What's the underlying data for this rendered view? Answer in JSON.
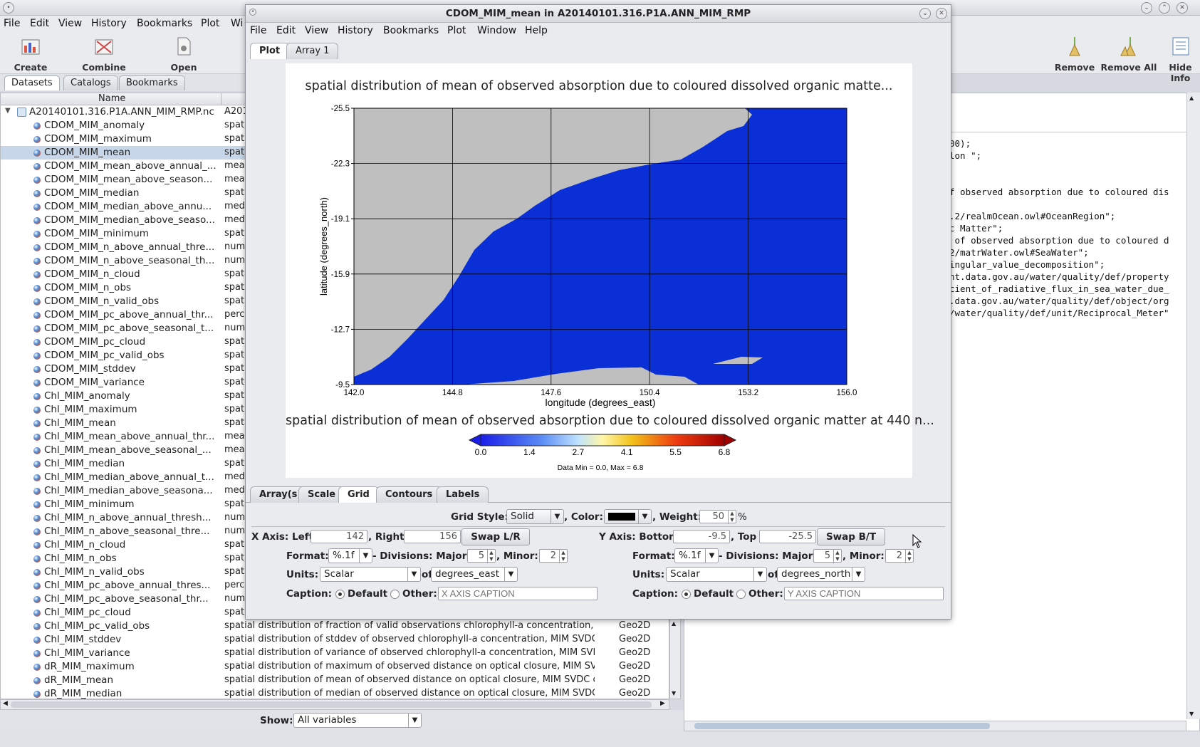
{
  "main": {
    "menu": [
      "File",
      "Edit",
      "View",
      "History",
      "Bookmarks",
      "Plot",
      "Wi"
    ],
    "toolbar_left": [
      "Create Plot",
      "Combine Plot",
      "Open Dataset"
    ],
    "toolbar_right": [
      "Remove",
      "Remove All",
      "Hide Info"
    ],
    "left_tabs": [
      "Datasets",
      "Catalogs",
      "Bookmarks"
    ],
    "tree_header_name": "Name",
    "dataset_root": "A20140101.316.P1A.ANN_MIM_RMP.nc",
    "dataset_root_desc": "A201",
    "variables": [
      {
        "name": "CDOM_MIM_anomaly",
        "desc": "spati"
      },
      {
        "name": "CDOM_MIM_maximum",
        "desc": "spati"
      },
      {
        "name": "CDOM_MIM_mean",
        "desc": "spati"
      },
      {
        "name": "CDOM_MIM_mean_above_annual_...",
        "desc": "mear"
      },
      {
        "name": "CDOM_MIM_mean_above_season...",
        "desc": "mear"
      },
      {
        "name": "CDOM_MIM_median",
        "desc": "spati"
      },
      {
        "name": "CDOM_MIM_median_above_annu...",
        "desc": "medi"
      },
      {
        "name": "CDOM_MIM_median_above_seaso...",
        "desc": "medi"
      },
      {
        "name": "CDOM_MIM_minimum",
        "desc": "spati"
      },
      {
        "name": "CDOM_MIM_n_above_annual_thre...",
        "desc": "numb"
      },
      {
        "name": "CDOM_MIM_n_above_seasonal_th...",
        "desc": "numb"
      },
      {
        "name": "CDOM_MIM_n_cloud",
        "desc": "spati"
      },
      {
        "name": "CDOM_MIM_n_obs",
        "desc": "spati"
      },
      {
        "name": "CDOM_MIM_n_valid_obs",
        "desc": "spati"
      },
      {
        "name": "CDOM_MIM_pc_above_annual_thr...",
        "desc": "perce"
      },
      {
        "name": "CDOM_MIM_pc_above_seasonal_t...",
        "desc": "numb"
      },
      {
        "name": "CDOM_MIM_pc_cloud",
        "desc": "spati"
      },
      {
        "name": "CDOM_MIM_pc_valid_obs",
        "desc": "spati"
      },
      {
        "name": "CDOM_MIM_stddev",
        "desc": "spati"
      },
      {
        "name": "CDOM_MIM_variance",
        "desc": "spati"
      },
      {
        "name": "Chl_MIM_anomaly",
        "desc": "spati"
      },
      {
        "name": "Chl_MIM_maximum",
        "desc": "spati"
      },
      {
        "name": "Chl_MIM_mean",
        "desc": "spati"
      },
      {
        "name": "Chl_MIM_mean_above_annual_thr...",
        "desc": "mear"
      },
      {
        "name": "Chl_MIM_mean_above_seasonal_...",
        "desc": "mear"
      },
      {
        "name": "Chl_MIM_median",
        "desc": "spati"
      },
      {
        "name": "Chl_MIM_median_above_annual_t...",
        "desc": "medi"
      },
      {
        "name": "Chl_MIM_median_above_seasona...",
        "desc": "medi"
      },
      {
        "name": "Chl_MIM_minimum",
        "desc": "spati"
      },
      {
        "name": "Chl_MIM_n_above_annual_thresh...",
        "desc": "numb"
      },
      {
        "name": "Chl_MIM_n_above_seasonal_thre...",
        "desc": "numb"
      },
      {
        "name": "Chl_MIM_n_cloud",
        "desc": "spati"
      },
      {
        "name": "Chl_MIM_n_obs",
        "desc": "spati"
      },
      {
        "name": "Chl_MIM_n_valid_obs",
        "desc": "spati"
      },
      {
        "name": "Chl_MIM_pc_above_annual_thres...",
        "desc": "perce"
      },
      {
        "name": "Chl_MIM_pc_above_seasonal_thr...",
        "desc": "numb"
      },
      {
        "name": "Chl_MIM_pc_cloud",
        "desc": "spati"
      },
      {
        "name": "Chl_MIM_pc_valid_obs",
        "desc": "spatial distribution of fraction of valid observations chlorophyll-a concentration, ...",
        "type": "Geo2D"
      },
      {
        "name": "Chl_MIM_stddev",
        "desc": "spatial distribution of stddev of observed chlorophyll-a concentration, MIM SVDC ...",
        "type": "Geo2D"
      },
      {
        "name": "Chl_MIM_variance",
        "desc": "spatial distribution of variance of observed chlorophyll-a concentration, MIM SVD...",
        "type": "Geo2D"
      },
      {
        "name": "dR_MIM_maximum",
        "desc": "spatial distribution of maximum of observed distance on optical closure, MIM SV...",
        "type": "Geo2D"
      },
      {
        "name": "dR_MIM_mean",
        "desc": "spatial distribution of mean of observed distance on optical closure, MIM SVDC o...",
        "type": "Geo2D"
      },
      {
        "name": "dR_MIM_median",
        "desc": "spatial distribution of median of observed distance on optical closure, MIM SVDC...",
        "type": "Geo2D"
      }
    ],
    "selected_index": 2,
    "show_label": "Show:",
    "show_value": "All variables",
    "info_lines": [
      "00);",
      "lon \";",
      "",
      "",
      "f observed absorption due to coloured dis",
      "",
      ".2/realmOcean.owl#OceanRegion\";",
      "c Matter\";",
      " of observed absorption due to coloured d",
      "2/matrWater.owl#SeaWater\";",
      "ingular_value_decomposition\";",
      "nt.data.gov.au/water/quality/def/property",
      "cient_of_radiative_flux_in_sea_water_due_",
      ".data.gov.au/water/quality/def/object/org",
      "/water/quality/def/unit/Reciprocal_Meter\""
    ]
  },
  "dialog": {
    "title": "CDOM_MIM_mean in A20140101.316.P1A.ANN_MIM_RMP",
    "menu": [
      "File",
      "Edit",
      "View",
      "History",
      "Bookmarks",
      "Plot",
      "Window",
      "Help"
    ],
    "tabs": [
      "Plot",
      "Array 1"
    ],
    "plot": {
      "title": "spatial distribution of mean of observed absorption due to coloured dissolved organic matte...",
      "xlabel": "longitude (degrees_east)",
      "ylabel": "latitude (degrees_north)",
      "x_ticks": [
        "142.0",
        "144.8",
        "147.6",
        "150.4",
        "153.2",
        "156.0"
      ],
      "y_ticks": [
        "-25.5",
        "-22.3",
        "-19.1",
        "-15.9",
        "-12.7",
        "-9.5"
      ],
      "colorbar_title": "spatial distribution of mean of observed absorption due to coloured dissolved organic matter at 440 n...",
      "colorbar_ticks": [
        "0.0",
        "1.4",
        "2.7",
        "4.1",
        "5.5",
        "6.8"
      ],
      "data_range": "Data Min = 0.0, Max = 6.8",
      "ocean_color": "#0a2fd6",
      "land_color": "#bfbfbf"
    },
    "ctrl_tabs": [
      "Array(s)",
      "Scale",
      "Grid",
      "Contours",
      "Labels"
    ],
    "grid": {
      "style_label": "Grid Style:",
      "style_value": "Solid",
      "color_label": ", Color:",
      "weight_label": ", Weight:",
      "weight_value": "50",
      "weight_unit": "%",
      "x": {
        "axis_label": "X Axis: Left",
        "left": "142",
        "right_label": ", Right",
        "right": "156",
        "swap": "Swap L/R",
        "format_label": "Format:",
        "format": "%.1f",
        "divisions_label": "- Divisions: Major:",
        "major": "5",
        "minor_label": ", Minor:",
        "minor": "2",
        "units_label": "Units:",
        "units": "Scalar",
        "of_label": "of",
        "units_of": "degrees_east",
        "caption_label": "Caption:",
        "default_label": "Default",
        "other_label": "Other:",
        "other_placeholder": "X AXIS CAPTION"
      },
      "y": {
        "axis_label": "Y Axis: Bottom",
        "bottom": "-9.5",
        "top_label": ", Top",
        "top": "-25.5",
        "swap": "Swap B/T",
        "format_label": "Format:",
        "format": "%.1f",
        "divisions_label": "- Divisions: Major:",
        "major": "5",
        "minor_label": ", Minor:",
        "minor": "2",
        "units_label": "Units:",
        "units": "Scalar",
        "of_label": "of",
        "units_of": "degrees_north",
        "caption_label": "Caption:",
        "default_label": "Default",
        "other_label": "Other:",
        "other_placeholder": "Y AXIS CAPTION"
      }
    }
  }
}
